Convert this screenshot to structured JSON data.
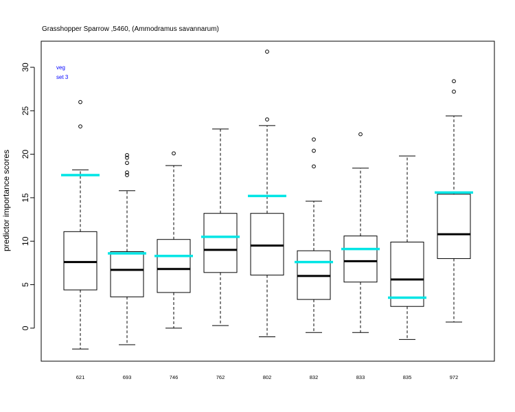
{
  "chart_data": {
    "type": "box",
    "title": "Grasshopper Sparrow ,5460, (Ammodramus savannarum)",
    "xlabel": "",
    "ylabel": "predictor importance scores",
    "ylim": [
      -3.8,
      33
    ],
    "yticks": [
      0,
      5,
      10,
      15,
      20,
      25,
      30
    ],
    "annotation": [
      "veg",
      "set 3"
    ],
    "colors": {
      "box": "#000000",
      "median": "#000000",
      "highlight": "#00e5e5",
      "annotation": "#0000ff"
    },
    "categories": [
      "621",
      "693",
      "746",
      "762",
      "802",
      "832",
      "833",
      "835",
      "972"
    ],
    "boxes": [
      {
        "label": "621",
        "whisker_low": -2.4,
        "q1": 4.4,
        "median": 7.6,
        "q3": 11.1,
        "whisker_high": 18.2,
        "outliers": [
          23.2,
          26.0
        ],
        "highlight": 17.6
      },
      {
        "label": "693",
        "whisker_low": -1.9,
        "q1": 3.6,
        "median": 6.7,
        "q3": 8.8,
        "whisker_high": 15.8,
        "outliers": [
          17.6,
          17.9,
          19.0,
          19.6,
          19.9
        ],
        "highlight": 8.6
      },
      {
        "label": "746",
        "whisker_low": 0.0,
        "q1": 4.1,
        "median": 6.8,
        "q3": 10.2,
        "whisker_high": 18.7,
        "outliers": [
          20.1
        ],
        "highlight": 8.3
      },
      {
        "label": "762",
        "whisker_low": 0.3,
        "q1": 6.4,
        "median": 9.0,
        "q3": 13.2,
        "whisker_high": 22.9,
        "outliers": [],
        "highlight": 10.5
      },
      {
        "label": "802",
        "whisker_low": -1.0,
        "q1": 6.1,
        "median": 9.5,
        "q3": 13.2,
        "whisker_high": 23.3,
        "outliers": [
          24.0,
          31.8
        ],
        "highlight": 15.2
      },
      {
        "label": "832",
        "whisker_low": -0.5,
        "q1": 3.3,
        "median": 6.0,
        "q3": 8.9,
        "whisker_high": 14.6,
        "outliers": [
          18.6,
          20.4,
          21.7
        ],
        "highlight": 7.6
      },
      {
        "label": "833",
        "whisker_low": -0.5,
        "q1": 5.3,
        "median": 7.7,
        "q3": 10.6,
        "whisker_high": 18.4,
        "outliers": [
          22.3
        ],
        "highlight": 9.1
      },
      {
        "label": "835",
        "whisker_low": -1.3,
        "q1": 2.5,
        "median": 5.6,
        "q3": 9.9,
        "whisker_high": 19.8,
        "outliers": [],
        "highlight": 3.5
      },
      {
        "label": "972",
        "whisker_low": 0.7,
        "q1": 8.0,
        "median": 10.8,
        "q3": 15.4,
        "whisker_high": 24.4,
        "outliers": [
          27.2,
          28.4
        ],
        "highlight": 15.6
      }
    ]
  }
}
